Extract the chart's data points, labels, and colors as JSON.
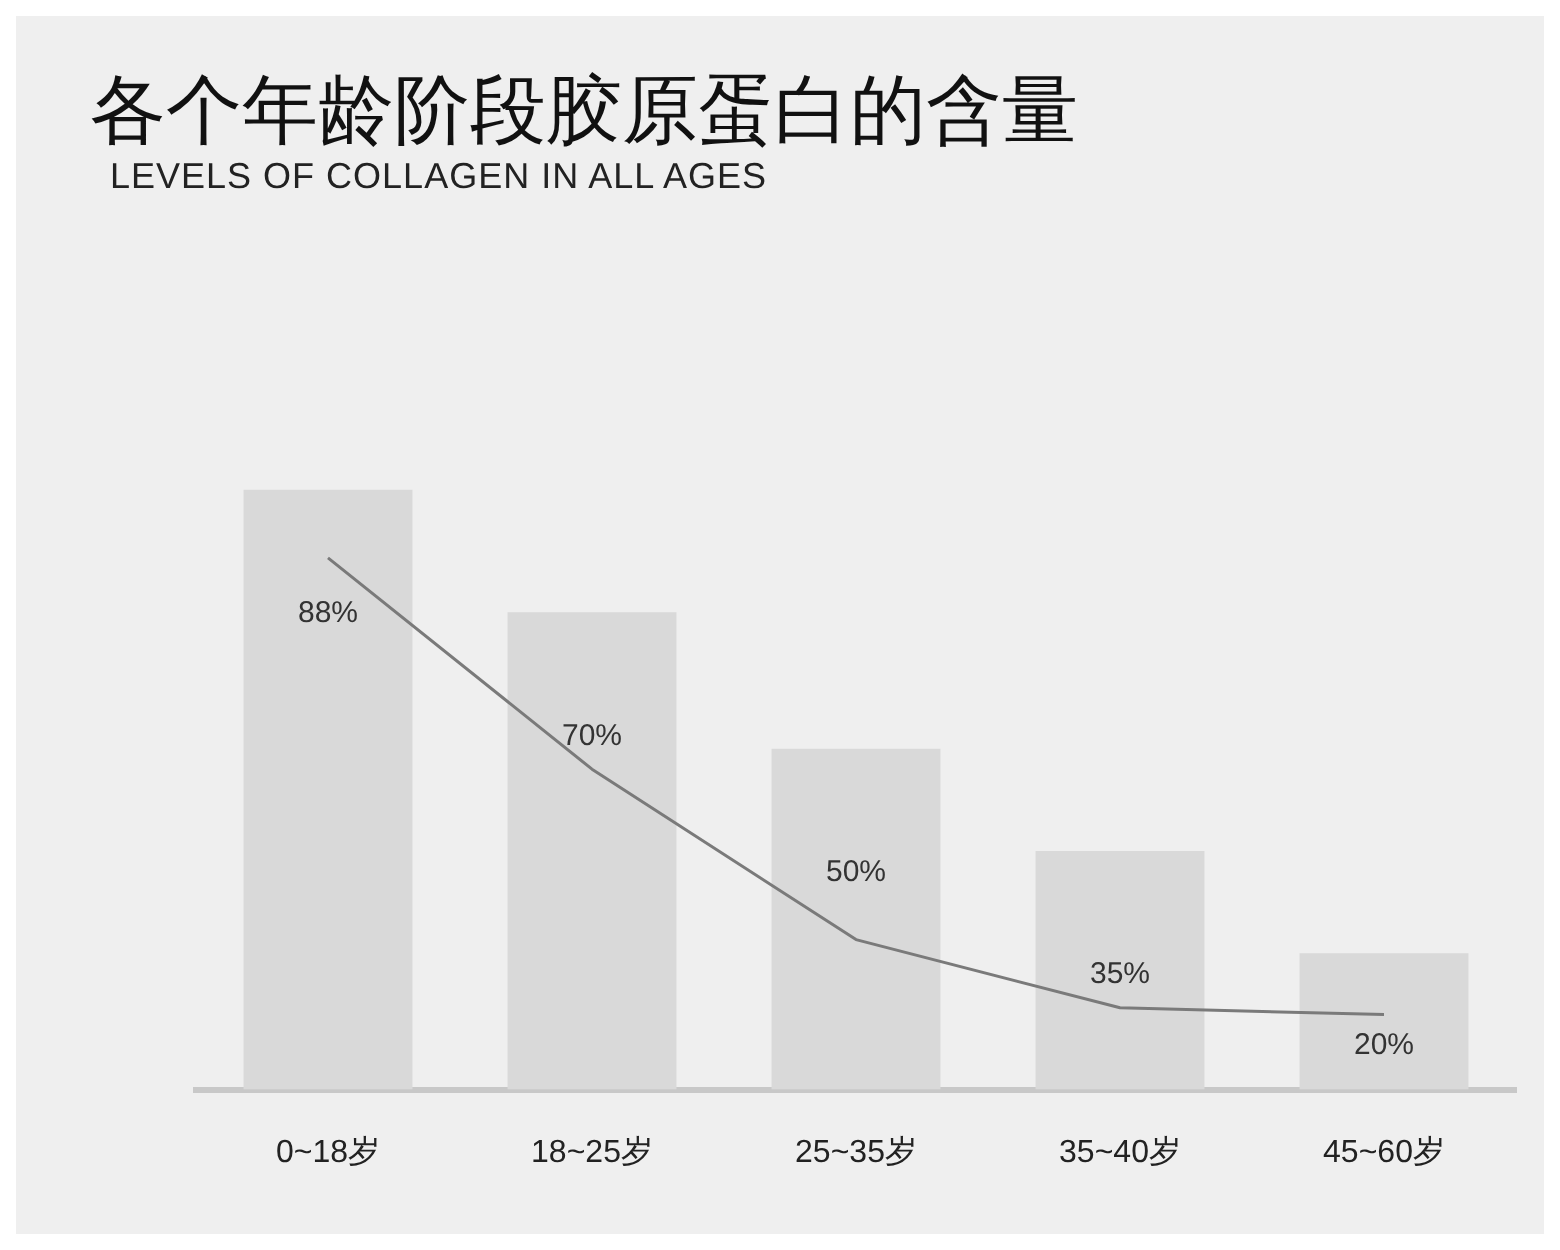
{
  "chart_data": {
    "type": "bar",
    "title": "各个年龄阶段胶原蛋白的含量",
    "subtitle": "LEVELS OF COLLAGEN IN ALL AGES",
    "categories": [
      "0~18岁",
      "18~25岁",
      "25~35岁",
      "35~40岁",
      "45~60岁"
    ],
    "series": [
      {
        "color": "#d9d9d9",
        "values": [
          88,
          70,
          50,
          35,
          20
        ],
        "value_labels": [
          "88%",
          "70%",
          "50%",
          "35%",
          "20%"
        ]
      },
      {
        "type": "line",
        "color": "#7a7a7a",
        "values": [
          78,
          47,
          22,
          12,
          11
        ]
      }
    ],
    "grid": false,
    "legend": false,
    "tick_labels": "x",
    "marker": "none"
  }
}
